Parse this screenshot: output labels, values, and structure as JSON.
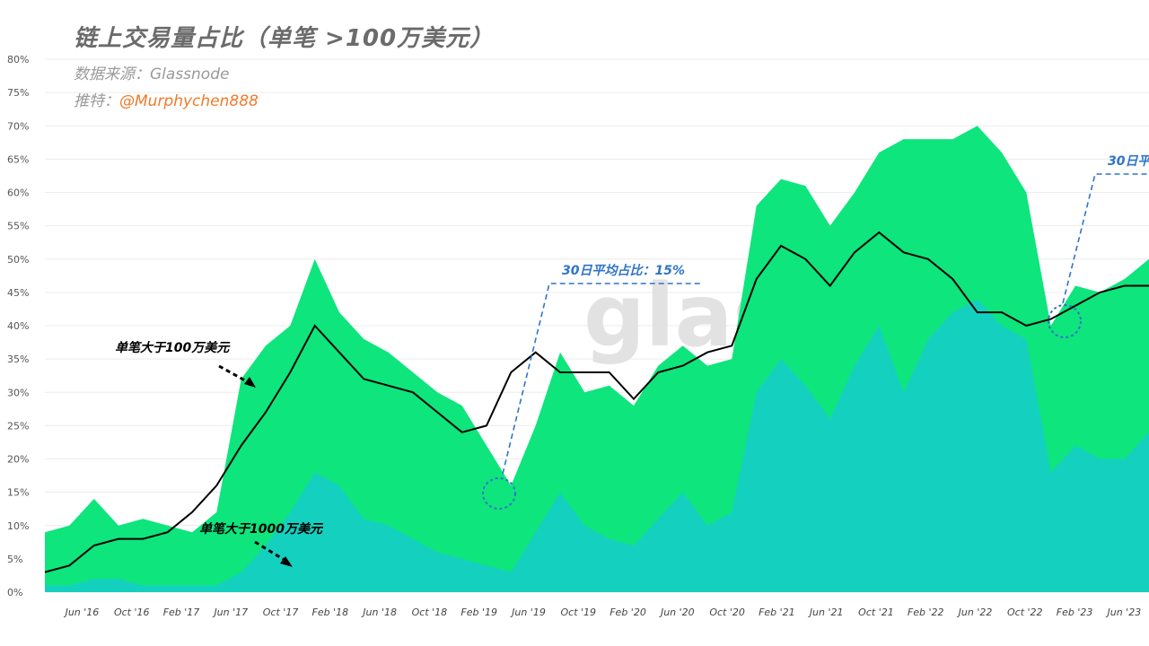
{
  "header": {
    "title": "链上交易量占比（单笔 >100万美元）",
    "source": "数据来源：Glassnode",
    "twitter_prefix": "推特：",
    "twitter_handle": "@Murphychen888"
  },
  "watermark": "glass",
  "colors": {
    "over_1m": "#0ee57c",
    "over_10m": "#14d1bf",
    "ma_line": "#000000",
    "callout": "#2f74c8"
  },
  "chart_data": {
    "type": "area",
    "ylim": [
      0,
      80
    ],
    "y_ticks": [
      "0%",
      "5%",
      "10%",
      "15%",
      "20%",
      "25%",
      "30%",
      "35%",
      "40%",
      "45%",
      "50%",
      "55%",
      "60%",
      "65%",
      "70%",
      "75%",
      "80%"
    ],
    "x_ticks": [
      "Jun '16",
      "Oct '16",
      "Feb '17",
      "Jun '17",
      "Oct '17",
      "Feb '18",
      "Jun '18",
      "Oct '18",
      "Feb '19",
      "Jun '19",
      "Oct '19",
      "Feb '20",
      "Jun '20",
      "Oct '20",
      "Feb '21",
      "Jun '21",
      "Oct '21",
      "Feb '22",
      "Jun '22",
      "Oct '22",
      "Feb '23",
      "Jun '23"
    ],
    "x": [
      "2016-03",
      "2016-05",
      "2016-07",
      "2016-09",
      "2016-11",
      "2017-01",
      "2017-03",
      "2017-05",
      "2017-07",
      "2017-09",
      "2017-11",
      "2018-01",
      "2018-03",
      "2018-05",
      "2018-07",
      "2018-09",
      "2018-11",
      "2019-01",
      "2019-03",
      "2019-05",
      "2019-07",
      "2019-09",
      "2019-11",
      "2020-01",
      "2020-03",
      "2020-05",
      "2020-07",
      "2020-09",
      "2020-11",
      "2021-01",
      "2021-03",
      "2021-05",
      "2021-07",
      "2021-09",
      "2021-11",
      "2022-01",
      "2022-03",
      "2022-05",
      "2022-07",
      "2022-09",
      "2022-11",
      "2023-01",
      "2023-03",
      "2023-05",
      "2023-07",
      "2023-08"
    ],
    "series": [
      {
        "name": "单笔大于100万美元",
        "kind": "area",
        "values": [
          9,
          10,
          14,
          10,
          11,
          10,
          9,
          12,
          32,
          37,
          40,
          50,
          42,
          38,
          36,
          33,
          30,
          28,
          22,
          16,
          25,
          36,
          30,
          31,
          28,
          34,
          37,
          34,
          35,
          58,
          62,
          61,
          55,
          60,
          66,
          68,
          68,
          68,
          70,
          66,
          60,
          40,
          46,
          45,
          47,
          50
        ]
      },
      {
        "name": "单笔大于1000万美元",
        "kind": "area",
        "values": [
          1,
          1,
          2,
          2,
          1,
          1,
          1,
          1,
          3,
          7,
          12,
          18,
          16,
          11,
          10,
          8,
          6,
          5,
          4,
          3,
          9,
          15,
          10,
          8,
          7,
          11,
          15,
          10,
          12,
          30,
          35,
          31,
          26,
          34,
          40,
          30,
          38,
          42,
          44,
          40,
          38,
          18,
          22,
          20,
          20,
          24
        ]
      },
      {
        "name": "30日平均占比",
        "kind": "line",
        "values": [
          3,
          4,
          7,
          8,
          8,
          9,
          12,
          16,
          22,
          27,
          33,
          40,
          36,
          32,
          31,
          30,
          27,
          24,
          25,
          33,
          36,
          33,
          33,
          33,
          29,
          33,
          34,
          36,
          37,
          47,
          52,
          50,
          46,
          51,
          54,
          51,
          50,
          47,
          42,
          42,
          40,
          41,
          43,
          45,
          46,
          46
        ]
      }
    ],
    "annotations": [
      {
        "text": "单笔大于100万美元",
        "color": "#000000"
      },
      {
        "text": "单笔大于1000万美元",
        "color": "#000000"
      },
      {
        "text": "30日平均占比：15%",
        "color": "#2f74c8"
      },
      {
        "text": "30日平",
        "color": "#2f74c8"
      }
    ]
  }
}
